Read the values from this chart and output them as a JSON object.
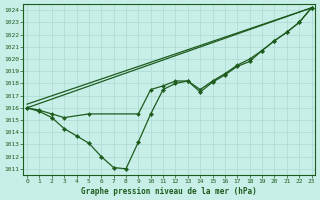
{
  "title": "Graphe pression niveau de la mer (hPa)",
  "bg_color": "#c8eee8",
  "grid_color": "#b0ddd6",
  "line_color": "#1e5c1e",
  "ylim": [
    1010.5,
    1024.5
  ],
  "xlim": [
    -0.3,
    23.3
  ],
  "yticks": [
    1011,
    1012,
    1013,
    1014,
    1015,
    1016,
    1017,
    1018,
    1019,
    1020,
    1021,
    1022,
    1023,
    1024
  ],
  "xticks": [
    0,
    1,
    2,
    3,
    4,
    5,
    6,
    7,
    8,
    9,
    10,
    11,
    12,
    13,
    14,
    15,
    16,
    17,
    18,
    19,
    20,
    21,
    22,
    23
  ],
  "series_main_x": [
    0,
    1,
    2,
    3,
    4,
    5,
    6,
    7,
    8,
    9,
    10,
    11,
    12,
    13,
    14,
    15,
    16,
    17,
    18,
    19,
    20,
    21,
    22,
    23
  ],
  "series_main_y": [
    1016.0,
    1015.7,
    1015.2,
    1014.3,
    1013.7,
    1013.1,
    1012.0,
    1011.1,
    1011.0,
    1013.2,
    1015.5,
    1017.5,
    1018.0,
    1018.2,
    1017.3,
    1018.1,
    1018.7,
    1019.4,
    1019.8,
    1020.7,
    1021.5,
    1022.2,
    1023.0,
    1024.2
  ],
  "series_straight1": [
    [
      0,
      1016.0
    ],
    [
      23,
      1024.2
    ]
  ],
  "series_straight2": [
    [
      0,
      1016.0
    ],
    [
      23,
      1024.2
    ]
  ],
  "series_mid_x": [
    0,
    1,
    2,
    3,
    5,
    9,
    10,
    11,
    12,
    13,
    14,
    15,
    16,
    17,
    18,
    19,
    20,
    21,
    22,
    23
  ],
  "series_mid_y": [
    1016.0,
    1015.8,
    1015.5,
    1015.2,
    1015.5,
    1015.5,
    1017.5,
    1017.8,
    1018.2,
    1018.2,
    1017.5,
    1018.2,
    1018.8,
    1019.5,
    1020.0,
    1020.7,
    1021.5,
    1022.2,
    1023.0,
    1024.2
  ]
}
